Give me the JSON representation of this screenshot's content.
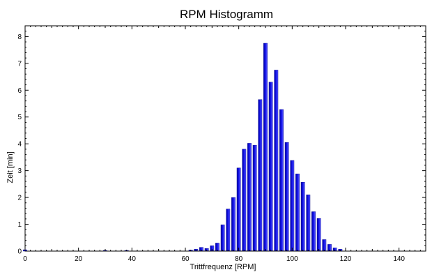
{
  "chart_data": {
    "type": "bar",
    "title": "RPM Histogramm",
    "xlabel": "Trittfrequenz [RPM]",
    "ylabel": "Zeit [min]",
    "xlim": [
      0,
      150
    ],
    "ylim": [
      0,
      8.4
    ],
    "xticks": [
      0,
      20,
      40,
      60,
      80,
      100,
      120,
      140
    ],
    "yticks": [
      0,
      1,
      2,
      3,
      4,
      5,
      6,
      7,
      8
    ],
    "grid": false,
    "legend": "none",
    "bar_color": "#1010e8",
    "x": [
      0,
      30,
      38,
      62,
      64,
      66,
      68,
      70,
      72,
      74,
      76,
      78,
      80,
      82,
      84,
      86,
      88,
      90,
      92,
      94,
      96,
      98,
      100,
      102,
      104,
      106,
      108,
      110,
      112,
      114,
      116,
      118
    ],
    "values": [
      0.05,
      0.02,
      0.02,
      0.04,
      0.07,
      0.14,
      0.1,
      0.2,
      0.3,
      0.98,
      1.57,
      2.0,
      3.1,
      3.8,
      4.02,
      3.95,
      5.65,
      7.75,
      6.3,
      6.75,
      5.28,
      4.05,
      3.38,
      2.88,
      2.57,
      2.1,
      1.47,
      1.22,
      0.43,
      0.25,
      0.12,
      0.07
    ]
  }
}
